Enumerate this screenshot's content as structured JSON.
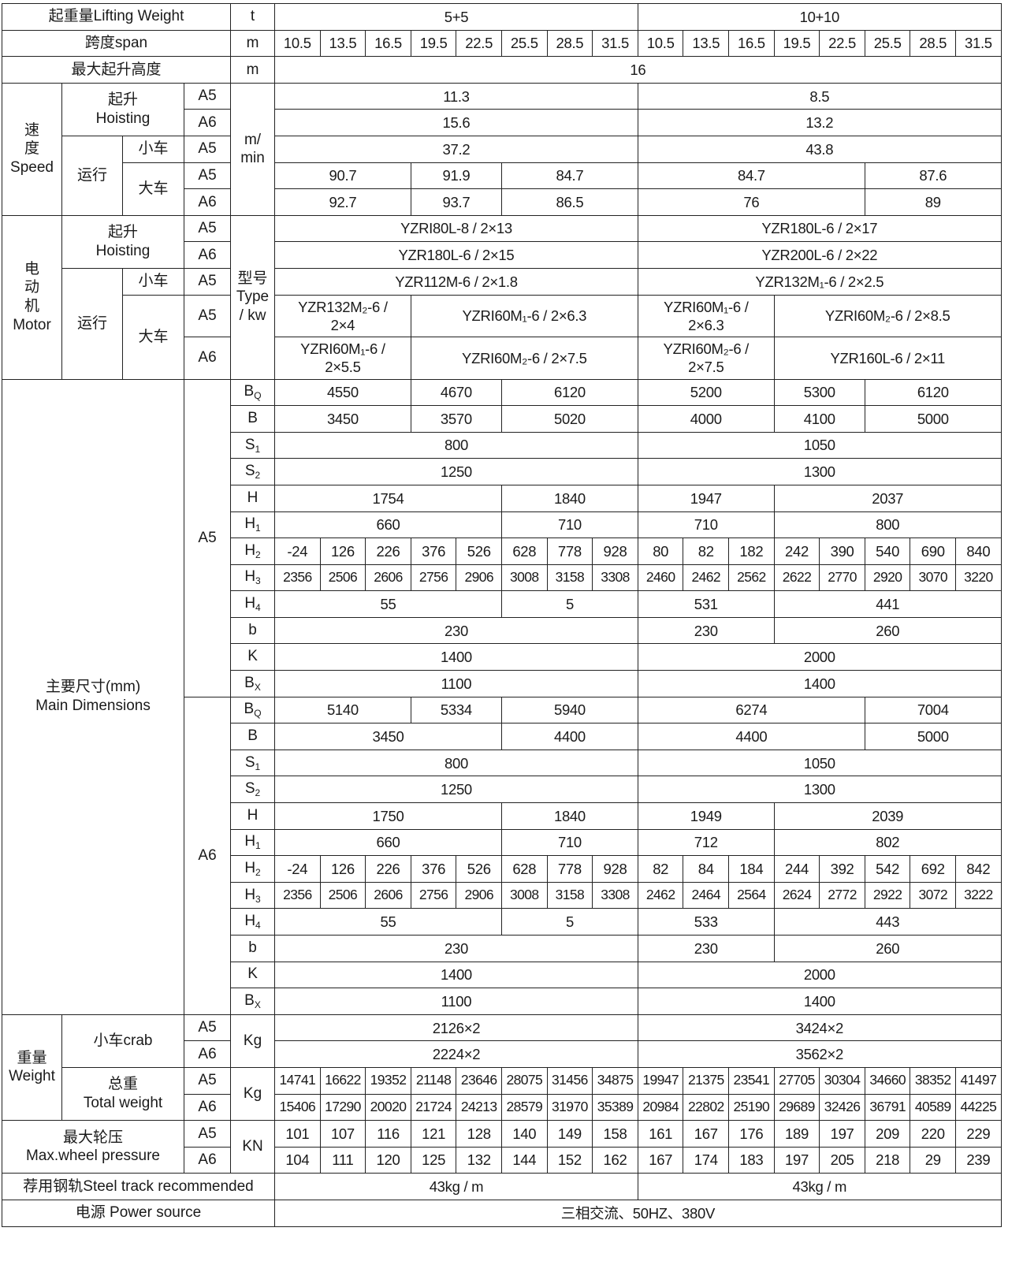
{
  "labels": {
    "a5": "A5",
    "a6": "A6"
  },
  "header": {
    "lifting_weight": "起重量Lifting Weight",
    "lw_unit": "t",
    "lw_values": [
      "5+5",
      "10+10"
    ],
    "span": "跨度span",
    "span_unit": "m",
    "spans": [
      "10.5",
      "13.5",
      "16.5",
      "19.5",
      "22.5",
      "25.5",
      "28.5",
      "31.5",
      "10.5",
      "13.5",
      "16.5",
      "19.5",
      "22.5",
      "25.5",
      "28.5",
      "31.5"
    ],
    "max_height": "最大起升高度",
    "mh_unit": "m",
    "mh_value": [
      "16"
    ]
  },
  "speed": {
    "label": "速\n度\nSpeed",
    "hoisting": "起升\nHoisting",
    "travel": "运行",
    "crab": "小车",
    "bridge": "大车",
    "unit": "m/\nmin",
    "hoist_a5": [
      "11.3",
      "8.5"
    ],
    "hoist_a6": [
      "15.6",
      "13.2"
    ],
    "crab_a5": [
      "37.2",
      "43.8"
    ],
    "bridge_a5": [
      "90.7",
      "91.9",
      "84.7",
      "84.7",
      "87.6"
    ],
    "bridge_a6": [
      "92.7",
      "93.7",
      "86.5",
      "76",
      "89"
    ]
  },
  "motor": {
    "label": "电\n动\n机\nMotor",
    "hoisting": "起升\nHoisting",
    "travel": "运行",
    "crab": "小车",
    "bridge": "大车",
    "unit": "型号\nType\n/ kw",
    "hoist_a5": [
      "YZRI80L-8 / 2×13",
      "YZR180L-6 / 2×17"
    ],
    "hoist_a6": [
      "YZR180L-6 / 2×15",
      "YZR200L-6 / 2×22"
    ],
    "crab_a5": [
      "YZR112M-6 / 2×1.8",
      "YZR132M₁-6 / 2×2.5"
    ],
    "bridge_a5": [
      "YZR132M₂-6 /\n2×4",
      "YZRI60M₁-6 / 2×6.3",
      "YZRI60M₁-6 /\n2×6.3",
      "YZRI60M₂-6 / 2×8.5"
    ],
    "bridge_a6": [
      "YZRI60M₁-6 /\n2×5.5",
      "YZRI60M₂-6 / 2×7.5",
      "YZRI60M₂-6 /\n2×7.5",
      "YZR160L-6 / 2×11"
    ]
  },
  "dims": {
    "label": "主要尺寸(mm)\nMain Dimensions",
    "a5": [
      {
        "sym": "B",
        "sub": "Q",
        "values": [
          "4550",
          "4670",
          "6120",
          "5200",
          "5300",
          "6120"
        ]
      },
      {
        "sym": "B",
        "sub": "",
        "values": [
          "3450",
          "3570",
          "5020",
          "4000",
          "4100",
          "5000"
        ]
      },
      {
        "sym": "S",
        "sub": "1",
        "values": [
          "800",
          "1050"
        ]
      },
      {
        "sym": "S",
        "sub": "2",
        "values": [
          "1250",
          "1300"
        ]
      },
      {
        "sym": "H",
        "sub": "",
        "values": [
          "1754",
          "1840",
          "1947",
          "2037"
        ]
      },
      {
        "sym": "H",
        "sub": "1",
        "values": [
          "660",
          "710",
          "710",
          "800"
        ]
      },
      {
        "sym": "H",
        "sub": "2",
        "values": [
          "-24",
          "126",
          "226",
          "376",
          "526",
          "628",
          "778",
          "928",
          "80",
          "82",
          "182",
          "242",
          "390",
          "540",
          "690",
          "840"
        ]
      },
      {
        "sym": "H",
        "sub": "3",
        "values": [
          "2356",
          "2506",
          "2606",
          "2756",
          "2906",
          "3008",
          "3158",
          "3308",
          "2460",
          "2462",
          "2562",
          "2622",
          "2770",
          "2920",
          "3070",
          "3220"
        ]
      },
      {
        "sym": "H",
        "sub": "4",
        "values": [
          "55",
          "5",
          "531",
          "441"
        ]
      },
      {
        "sym": "b",
        "sub": "",
        "values": [
          "230",
          "230",
          "260"
        ]
      },
      {
        "sym": "K",
        "sub": "",
        "values": [
          "1400",
          "2000"
        ]
      },
      {
        "sym": "B",
        "sub": "X",
        "values": [
          "1100",
          "1400"
        ]
      }
    ],
    "a6": [
      {
        "sym": "B",
        "sub": "Q",
        "values": [
          "5140",
          "5334",
          "5940",
          "6274",
          "7004"
        ]
      },
      {
        "sym": "B",
        "sub": "",
        "values": [
          "3450",
          "4400",
          "4400",
          "5000"
        ]
      },
      {
        "sym": "S",
        "sub": "1",
        "values": [
          "800",
          "1050"
        ]
      },
      {
        "sym": "S",
        "sub": "2",
        "values": [
          "1250",
          "1300"
        ]
      },
      {
        "sym": "H",
        "sub": "",
        "values": [
          "1750",
          "1840",
          "1949",
          "2039"
        ]
      },
      {
        "sym": "H",
        "sub": "1",
        "values": [
          "660",
          "710",
          "712",
          "802"
        ]
      },
      {
        "sym": "H",
        "sub": "2",
        "values": [
          "-24",
          "126",
          "226",
          "376",
          "526",
          "628",
          "778",
          "928",
          "82",
          "84",
          "184",
          "244",
          "392",
          "542",
          "692",
          "842"
        ]
      },
      {
        "sym": "H",
        "sub": "3",
        "values": [
          "2356",
          "2506",
          "2606",
          "2756",
          "2906",
          "3008",
          "3158",
          "3308",
          "2462",
          "2464",
          "2564",
          "2624",
          "2772",
          "2922",
          "3072",
          "3222"
        ]
      },
      {
        "sym": "H",
        "sub": "4",
        "values": [
          "55",
          "5",
          "533",
          "443"
        ]
      },
      {
        "sym": "b",
        "sub": "",
        "values": [
          "230",
          "230",
          "260"
        ]
      },
      {
        "sym": "K",
        "sub": "",
        "values": [
          "1400",
          "2000"
        ]
      },
      {
        "sym": "B",
        "sub": "X",
        "values": [
          "1100",
          "1400"
        ]
      }
    ]
  },
  "weight": {
    "label": "重量\nWeight",
    "crab": "小车crab",
    "total": "总重\nTotal weight",
    "unit": "Kg",
    "crab_a5": [
      "2126×2",
      "3424×2"
    ],
    "crab_a6": [
      "2224×2",
      "3562×2"
    ],
    "total_a5": [
      "14741",
      "16622",
      "19352",
      "21148",
      "23646",
      "28075",
      "31456",
      "34875",
      "19947",
      "21375",
      "23541",
      "27705",
      "30304",
      "34660",
      "38352",
      "41497"
    ],
    "total_a6": [
      "15406",
      "17290",
      "20020",
      "21724",
      "24213",
      "28579",
      "31970",
      "35389",
      "20984",
      "22802",
      "25190",
      "29689",
      "32426",
      "36791",
      "40589",
      "44225"
    ]
  },
  "wheel": {
    "label": "最大轮压\nMax.wheel pressure",
    "unit": "KN",
    "a5": [
      "101",
      "107",
      "116",
      "121",
      "128",
      "140",
      "149",
      "158",
      "161",
      "167",
      "176",
      "189",
      "197",
      "209",
      "220",
      "229"
    ],
    "a6": [
      "104",
      "111",
      "120",
      "125",
      "132",
      "144",
      "152",
      "162",
      "167",
      "174",
      "183",
      "197",
      "205",
      "218",
      "29",
      "239"
    ]
  },
  "steel": {
    "label": "荐用钢轨Steel track recommended",
    "values": [
      "43kg / m",
      "43kg / m"
    ]
  },
  "power": {
    "label": "电源  Power source",
    "values": [
      "三相交流、50HZ、380V"
    ]
  }
}
